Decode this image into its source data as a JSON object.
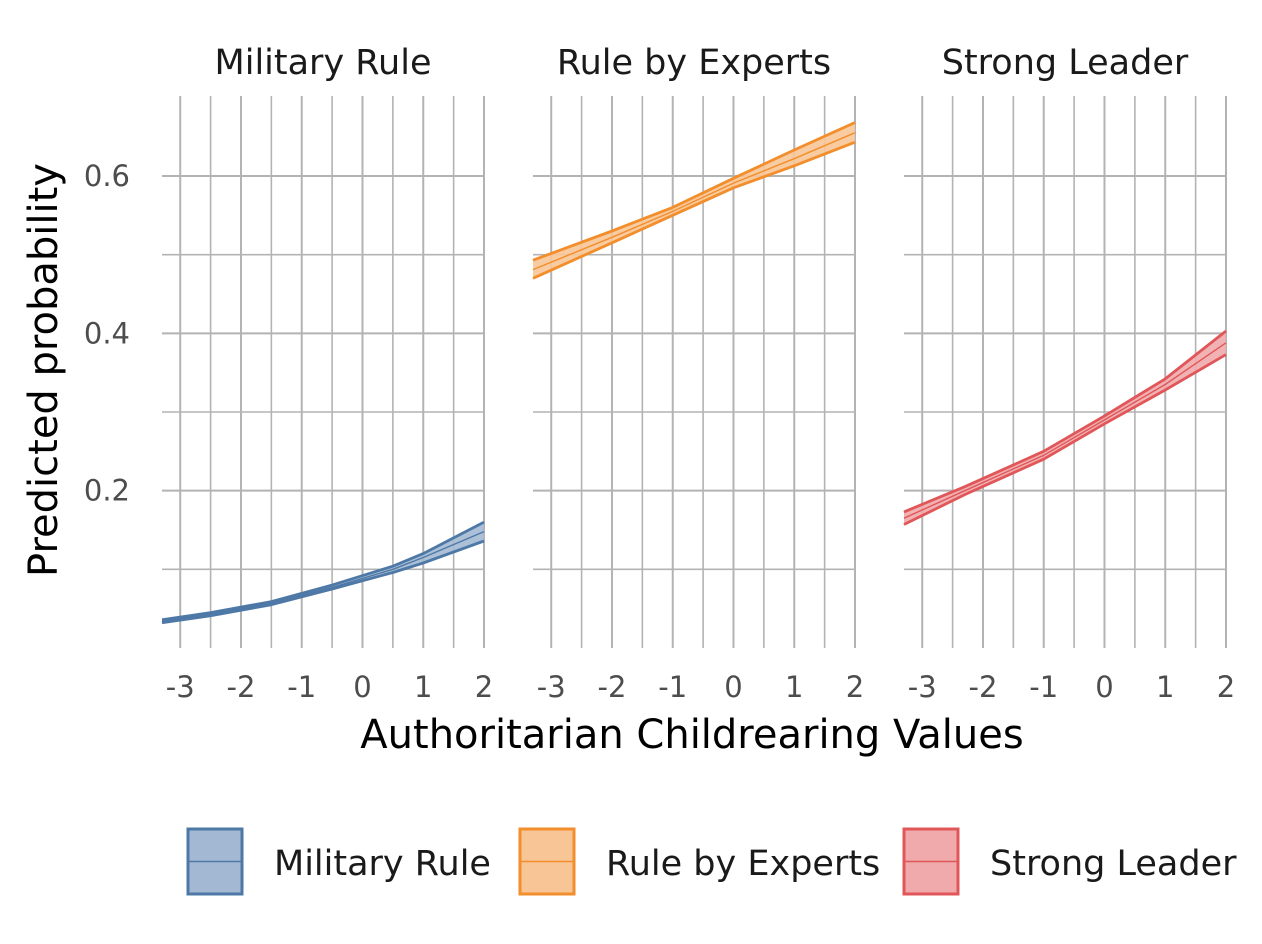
{
  "chart_data": {
    "type": "line",
    "xlabel": "Authoritarian Childrearing Values",
    "ylabel": "Predicted probability",
    "xlim": [
      -3.3,
      2.0
    ],
    "ylim": [
      0.0,
      0.7
    ],
    "x_ticks": [
      "-3",
      "-2",
      "-1",
      "0",
      "1",
      "2"
    ],
    "y_ticks": [
      "0.2",
      "0.4",
      "0.6"
    ],
    "grid": true,
    "legend_position": "bottom",
    "panels": [
      {
        "title": "Military Rule",
        "color": "#4e79a7",
        "fill": "#a3b9d3",
        "x": [
          -3.3,
          -2.5,
          -1.5,
          -0.5,
          0.5,
          1.0,
          2.0
        ],
        "estimate": [
          0.034,
          0.043,
          0.057,
          0.077,
          0.1,
          0.115,
          0.148
        ],
        "lower": [
          0.032,
          0.041,
          0.055,
          0.075,
          0.096,
          0.108,
          0.136
        ],
        "upper": [
          0.036,
          0.045,
          0.059,
          0.08,
          0.104,
          0.12,
          0.16
        ]
      },
      {
        "title": "Rule by Experts",
        "color": "#f28e2b",
        "fill": "#f8c596",
        "x": [
          -3.3,
          -2.0,
          -1.0,
          0.0,
          1.0,
          2.0
        ],
        "estimate": [
          0.481,
          0.522,
          0.555,
          0.591,
          0.622,
          0.655
        ],
        "lower": [
          0.47,
          0.515,
          0.55,
          0.585,
          0.613,
          0.643
        ],
        "upper": [
          0.493,
          0.53,
          0.56,
          0.597,
          0.633,
          0.668
        ]
      },
      {
        "title": "Strong Leader",
        "color": "#e15759",
        "fill": "#f0aaab",
        "x": [
          -3.3,
          -2.3,
          -1.0,
          0.0,
          1.0,
          2.0
        ],
        "estimate": [
          0.165,
          0.2,
          0.245,
          0.29,
          0.335,
          0.388
        ],
        "lower": [
          0.157,
          0.195,
          0.24,
          0.285,
          0.328,
          0.373
        ],
        "upper": [
          0.173,
          0.205,
          0.25,
          0.295,
          0.342,
          0.403
        ]
      }
    ]
  },
  "legend": {
    "items": [
      "Military Rule",
      "Rule by Experts",
      "Strong Leader"
    ]
  }
}
